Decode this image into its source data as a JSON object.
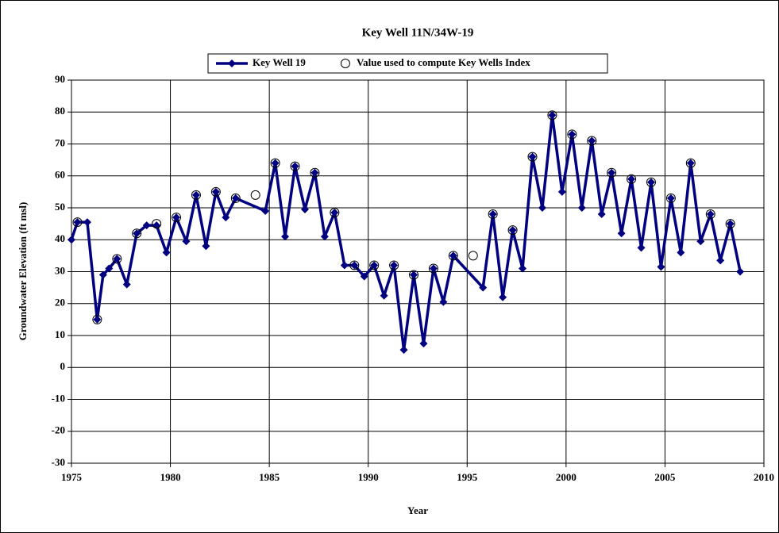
{
  "chart_data": {
    "type": "line",
    "title": "Key Well 11N/34W-19",
    "x_label": "Year",
    "y_label": "Groundwater Elevation (ft msl)",
    "xlim": [
      1975,
      2010
    ],
    "xticks": [
      1975,
      1980,
      1985,
      1990,
      1995,
      2000,
      2005,
      2010
    ],
    "ylim": [
      -30,
      90
    ],
    "yticks": [
      -30,
      -20,
      -10,
      0,
      10,
      20,
      30,
      40,
      50,
      60,
      70,
      80,
      90
    ],
    "grid": true,
    "legend": "top",
    "series": [
      {
        "name": "Key Well 19",
        "color": "#000080",
        "marker": "diamond",
        "x": [
          1975.0,
          1975.3,
          1975.8,
          1976.3,
          1976.6,
          1976.9,
          1977.3,
          1977.8,
          1978.3,
          1978.8,
          1979.3,
          1979.8,
          1980.3,
          1980.8,
          1981.3,
          1981.8,
          1982.3,
          1982.8,
          1983.3,
          1984.8,
          1985.3,
          1985.8,
          1986.3,
          1986.8,
          1987.3,
          1987.8,
          1988.3,
          1988.8,
          1989.3,
          1989.8,
          1990.3,
          1990.8,
          1991.3,
          1991.8,
          1992.3,
          1992.8,
          1993.3,
          1993.8,
          1994.3,
          1995.8,
          1996.3,
          1996.8,
          1997.3,
          1997.8,
          1998.3,
          1998.8,
          1999.3,
          1999.8,
          2000.3,
          2000.8,
          2001.3,
          2001.8,
          2002.3,
          2002.8,
          2003.3,
          2003.8,
          2004.3,
          2004.8,
          2005.3,
          2005.8,
          2006.3,
          2006.8,
          2007.3,
          2007.8,
          2008.3,
          2008.8
        ],
        "values": [
          40,
          45.5,
          45.5,
          15,
          29,
          31,
          34,
          26,
          42,
          44.5,
          44.5,
          36,
          47,
          39.5,
          54,
          38,
          55,
          47,
          53,
          49,
          64,
          41,
          63,
          49.5,
          61,
          41,
          48.5,
          32,
          32,
          28.5,
          32,
          22.5,
          32,
          5.5,
          29,
          7.5,
          31,
          20.5,
          35,
          25,
          48,
          22,
          43,
          31,
          66,
          50,
          79,
          55,
          73,
          50,
          71,
          48,
          61,
          42,
          59,
          37.5,
          58,
          31.5,
          53,
          36,
          64,
          39.5,
          48,
          33.5,
          45,
          30
        ]
      },
      {
        "name": "Value used to compute Key Wells Index",
        "color": "#000000",
        "marker": "circle",
        "x": [
          1975.3,
          1976.3,
          1977.3,
          1978.3,
          1979.3,
          1980.3,
          1981.3,
          1982.3,
          1983.3,
          1984.3,
          1985.3,
          1986.3,
          1987.3,
          1988.3,
          1989.3,
          1990.3,
          1991.3,
          1992.3,
          1993.3,
          1994.3,
          1995.3,
          1996.3,
          1997.3,
          1998.3,
          1999.3,
          2000.3,
          2001.3,
          2002.3,
          2003.3,
          2004.3,
          2005.3,
          2006.3,
          2007.3,
          2008.3
        ],
        "values": [
          45.5,
          15,
          34,
          42,
          45,
          47,
          54,
          55,
          53,
          54,
          64,
          63,
          61,
          48.5,
          32,
          32,
          32,
          29,
          31,
          35,
          35,
          48,
          43,
          66,
          79,
          73,
          71,
          61,
          59,
          58,
          53,
          64,
          48,
          45
        ]
      }
    ]
  }
}
